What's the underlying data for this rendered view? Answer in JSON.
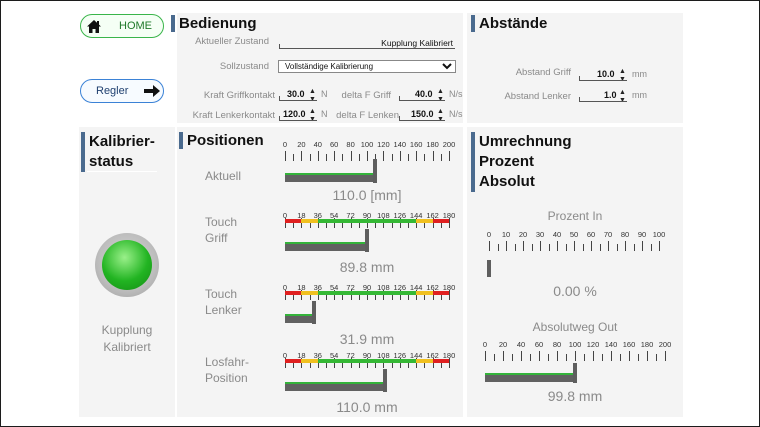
{
  "nav": {
    "home_label": "HOME",
    "regler_label": "Regler"
  },
  "bedienung": {
    "title": "Bedienung",
    "aktueller_zustand_label": "Aktueller Zustand",
    "aktueller_zustand_value": "Kupplung Kalibriert",
    "sollzustand_label": "Sollzustand",
    "sollzustand_value": "Vollständige Kalibrierung",
    "kraft_griffkontakt_label": "Kraft Griffkontakt",
    "kraft_griffkontakt_value": "30.0",
    "kraft_griffkontakt_unit": "N",
    "delta_f_griff_label": "delta F Griff",
    "delta_f_griff_value": "40.0",
    "delta_f_griff_unit": "N/s",
    "kraft_lenkerkontakt_label": "Kraft Lenkerkontakt",
    "kraft_lenkerkontakt_value": "120.0",
    "kraft_lenkerkontakt_unit": "N",
    "delta_f_lenker_label": "delta F Lenken",
    "delta_f_lenker_value": "150.0",
    "delta_f_lenker_unit": "N/s"
  },
  "abstaende": {
    "title": "Abstände",
    "abstand_griff_label": "Abstand Griff",
    "abstand_griff_value": "10.0",
    "abstand_griff_unit": "mm",
    "abstand_lenker_label": "Abstand Lenker",
    "abstand_lenker_value": "1.0",
    "abstand_lenker_unit": "mm"
  },
  "kalibrierstatus": {
    "title_line1": "Kalibrier-",
    "title_line2": "status",
    "status_color": "#22b422",
    "status_line1": "Kupplung",
    "status_line2": "Kalibriert"
  },
  "positionen": {
    "title": "Positionen",
    "gauges": [
      {
        "label_line1": "Aktuell",
        "label_line2": "",
        "scale_max": 200,
        "scale_labels": [
          "0",
          "20",
          "40",
          "60",
          "80",
          "100",
          "120",
          "140",
          "160",
          "180",
          "200"
        ],
        "value": 110.0,
        "value_text": "110.0 [mm]",
        "has_color_bands": false
      },
      {
        "label_line1": "Touch",
        "label_line2": "Griff",
        "scale_max": 180,
        "scale_labels": [
          "0",
          "18",
          "36",
          "54",
          "72",
          "90",
          "108",
          "126",
          "144",
          "162",
          "180"
        ],
        "value": 89.8,
        "value_text": "89.8 mm",
        "has_color_bands": true
      },
      {
        "label_line1": "Touch",
        "label_line2": "Lenker",
        "scale_max": 180,
        "scale_labels": [
          "0",
          "18",
          "36",
          "54",
          "72",
          "90",
          "108",
          "126",
          "144",
          "162",
          "180"
        ],
        "value": 31.9,
        "value_text": "31.9 mm",
        "has_color_bands": true
      },
      {
        "label_line1": "Losfahr-",
        "label_line2": "Position",
        "scale_max": 180,
        "scale_labels": [
          "0",
          "18",
          "36",
          "54",
          "72",
          "90",
          "108",
          "126",
          "144",
          "162",
          "180"
        ],
        "value": 110.0,
        "value_text": "110.0 mm",
        "has_color_bands": true
      }
    ],
    "band_colors": {
      "red": "#e02020",
      "yellow": "#f0c020",
      "green": "#35b835"
    }
  },
  "umrechnung": {
    "title_line1": "Umrechnung",
    "title_line2": "Prozent",
    "title_line3": "Absolut",
    "prozent_label": "Prozent In",
    "prozent_scale_labels": [
      "0",
      "10",
      "20",
      "30",
      "40",
      "50",
      "60",
      "70",
      "80",
      "90",
      "100"
    ],
    "prozent_value": 0.0,
    "prozent_value_text": "0.00 %",
    "absolut_label": "Absolutweg Out",
    "absolut_scale_labels": [
      "0",
      "20",
      "40",
      "60",
      "80",
      "100",
      "120",
      "140",
      "160",
      "180",
      "200"
    ],
    "absolut_value": 99.8,
    "absolut_value_text": "99.8 mm"
  }
}
